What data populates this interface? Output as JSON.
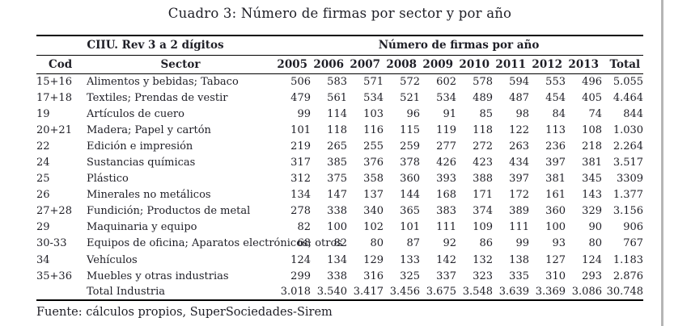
{
  "title": "Cuadro 3: Número de firmas por sector y por año",
  "table": {
    "group_headers": {
      "left": "CIIU. Rev 3 a 2 dígitos",
      "right": "Número de firmas por año"
    },
    "columns": [
      "Cod",
      "Sector",
      "2005",
      "2006",
      "2007",
      "2008",
      "2009",
      "2010",
      "2011",
      "2012",
      "2013",
      "Total"
    ],
    "rows": [
      {
        "cod": "15+16",
        "sector": "Alimentos y bebidas; Tabaco",
        "values": [
          "506",
          "583",
          "571",
          "572",
          "602",
          "578",
          "594",
          "553",
          "496"
        ],
        "total": "5.055"
      },
      {
        "cod": "17+18",
        "sector": "Textiles; Prendas de vestir",
        "values": [
          "479",
          "561",
          "534",
          "521",
          "534",
          "489",
          "487",
          "454",
          "405"
        ],
        "total": "4.464"
      },
      {
        "cod": "19",
        "sector": "Artículos de cuero",
        "values": [
          "99",
          "114",
          "103",
          "96",
          "91",
          "85",
          "98",
          "84",
          "74"
        ],
        "total": "844"
      },
      {
        "cod": "20+21",
        "sector": "Madera; Papel y cartón",
        "values": [
          "101",
          "118",
          "116",
          "115",
          "119",
          "118",
          "122",
          "113",
          "108"
        ],
        "total": "1.030"
      },
      {
        "cod": "22",
        "sector": "Edición e impresión",
        "values": [
          "219",
          "265",
          "255",
          "259",
          "277",
          "272",
          "263",
          "236",
          "218"
        ],
        "total": "2.264"
      },
      {
        "cod": "24",
        "sector": "Sustancias químicas",
        "values": [
          "317",
          "385",
          "376",
          "378",
          "426",
          "423",
          "434",
          "397",
          "381"
        ],
        "total": "3.517"
      },
      {
        "cod": "25",
        "sector": "Plástico",
        "values": [
          "312",
          "375",
          "358",
          "360",
          "393",
          "388",
          "397",
          "381",
          "345"
        ],
        "total": "3309"
      },
      {
        "cod": "26",
        "sector": "Minerales no metálicos",
        "values": [
          "134",
          "147",
          "137",
          "144",
          "168",
          "171",
          "172",
          "161",
          "143"
        ],
        "total": "1.377"
      },
      {
        "cod": "27+28",
        "sector": "Fundición; Productos de metal",
        "values": [
          "278",
          "338",
          "340",
          "365",
          "383",
          "374",
          "389",
          "360",
          "329"
        ],
        "total": "3.156"
      },
      {
        "cod": "29",
        "sector": "Maquinaria y equipo",
        "values": [
          "82",
          "100",
          "102",
          "101",
          "111",
          "109",
          "111",
          "100",
          "90"
        ],
        "total": "906"
      },
      {
        "cod": "30-33",
        "sector": "Equipos de oficina; Aparatos electrónicos; otros",
        "values": [
          "68",
          "82",
          "80",
          "87",
          "92",
          "86",
          "99",
          "93",
          "80"
        ],
        "total": "767"
      },
      {
        "cod": "34",
        "sector": "Vehículos",
        "values": [
          "124",
          "134",
          "129",
          "133",
          "142",
          "132",
          "138",
          "127",
          "124"
        ],
        "total": "1.183"
      },
      {
        "cod": "35+36",
        "sector": "Muebles y otras industrias",
        "values": [
          "299",
          "338",
          "316",
          "325",
          "337",
          "323",
          "335",
          "310",
          "293"
        ],
        "total": "2.876"
      },
      {
        "cod": "",
        "sector": "Total Industria",
        "values": [
          "3.018",
          "3.540",
          "3.417",
          "3.456",
          "3.675",
          "3.548",
          "3.639",
          "3.369",
          "3.086"
        ],
        "total": "30.748"
      }
    ]
  },
  "source": "Fuente: cálculos propios, SuperSociedades-Sirem",
  "colors": {
    "background": "#ffffff",
    "text": "#1e1e26",
    "rule": "#000000",
    "window_edge": "#b5b5b5"
  }
}
